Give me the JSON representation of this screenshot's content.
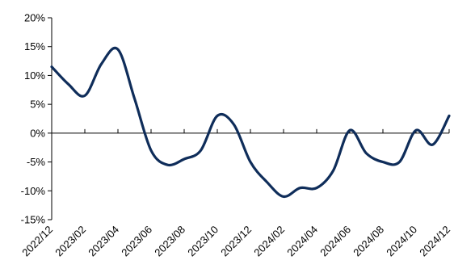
{
  "chart_data": {
    "type": "line",
    "title": "",
    "xlabel": "",
    "ylabel": "",
    "ylim": [
      -15,
      20
    ],
    "yticks": [
      20,
      15,
      10,
      5,
      0,
      -5,
      -10,
      -15
    ],
    "ytick_labels": [
      "20%",
      "15%",
      "10%",
      "5%",
      "0%",
      "-5%",
      "-10%",
      "-15%"
    ],
    "xtick_labels": [
      "2022/12",
      "2023/02",
      "2023/04",
      "2023/06",
      "2023/08",
      "2023/10",
      "2023/12",
      "2024/02",
      "2024/04",
      "2024/06",
      "2024/08",
      "2024/10",
      "2024/12"
    ],
    "grid": false,
    "legend": "none",
    "x": [
      "2022/12",
      "2023/01",
      "2023/02",
      "2023/03",
      "2023/04",
      "2023/05",
      "2023/06",
      "2023/07",
      "2023/08",
      "2023/09",
      "2023/10",
      "2023/11",
      "2023/12",
      "2024/01",
      "2024/02",
      "2024/03",
      "2024/04",
      "2024/05",
      "2024/06",
      "2024/07",
      "2024/08",
      "2024/09",
      "2024/10",
      "2024/11",
      "2024/12"
    ],
    "series": [
      {
        "color": "#0f2d5a",
        "values": [
          11.5,
          8.5,
          6.5,
          12.0,
          14.5,
          6.0,
          -3.0,
          -5.5,
          -4.5,
          -3.0,
          3.0,
          1.5,
          -5.0,
          -8.5,
          -11.0,
          -9.5,
          -9.5,
          -6.5,
          0.5,
          -3.5,
          -5.0,
          -5.0,
          0.5,
          -2.0,
          3.0
        ]
      }
    ]
  }
}
